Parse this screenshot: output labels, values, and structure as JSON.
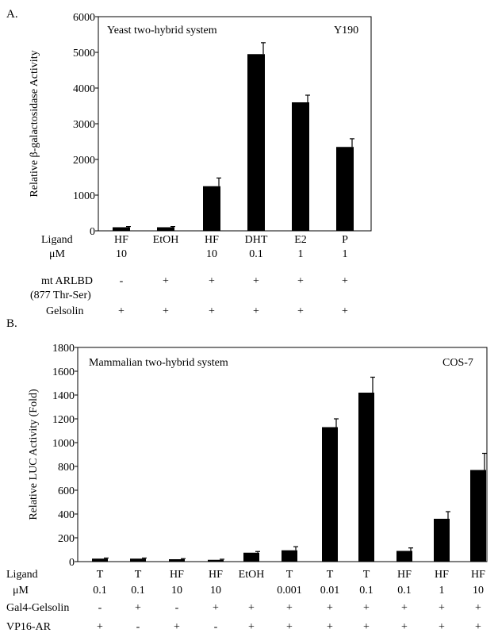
{
  "chart_data": [
    {
      "panel_label": "A.",
      "type": "bar",
      "title": "Yeast two-hybrid system",
      "annotation": "Y190",
      "ylabel": "Relative β-galactosidase Activity",
      "ylim": [
        0,
        6000
      ],
      "yticks": [
        "0",
        "1000",
        "2000",
        "3000",
        "4000",
        "5000",
        "6000"
      ],
      "values": [
        100,
        100,
        1250,
        4950,
        3600,
        2350
      ],
      "errors": [
        20,
        20,
        230,
        320,
        200,
        230
      ],
      "table": [
        {
          "label": "Ligand",
          "cells": [
            "HF",
            "EtOH",
            "HF",
            "DHT",
            "E2",
            "P"
          ]
        },
        {
          "label": "μM",
          "cells": [
            "10",
            "",
            "10",
            "0.1",
            "1",
            "1"
          ]
        },
        {
          "label": "mt ARLBD",
          "cells": [
            "-",
            "+",
            "+",
            "+",
            "+",
            "+"
          ]
        },
        {
          "label": "(877 Thr-Ser)",
          "cells": []
        },
        {
          "label": "Gelsolin",
          "cells": [
            "+",
            "+",
            "+",
            "+",
            "+",
            "+"
          ]
        }
      ]
    },
    {
      "panel_label": "B.",
      "type": "bar",
      "title": "Mammalian two-hybrid system",
      "annotation": "COS-7",
      "ylabel": "Relative LUC Activity (Fold)",
      "ylim": [
        0,
        1800
      ],
      "yticks": [
        "0",
        "200",
        "400",
        "600",
        "800",
        "1000",
        "1200",
        "1400",
        "1600",
        "1800"
      ],
      "values": [
        25,
        25,
        20,
        15,
        75,
        95,
        1130,
        1420,
        90,
        360,
        770
      ],
      "errors": [
        5,
        5,
        5,
        5,
        10,
        30,
        70,
        130,
        25,
        60,
        140
      ],
      "table": [
        {
          "label": "Ligand",
          "cells": [
            "T",
            "T",
            "HF",
            "HF",
            "EtOH",
            "T",
            "T",
            "T",
            "HF",
            "HF",
            "HF"
          ]
        },
        {
          "label": "μM",
          "cells": [
            "0.1",
            "0.1",
            "10",
            "10",
            "",
            "0.001",
            "0.01",
            "0.1",
            "0.1",
            "1",
            "10"
          ]
        },
        {
          "label": "Gal4-Gelsolin",
          "cells": [
            "-",
            "+",
            "-",
            "+",
            "+",
            "+",
            "+",
            "+",
            "+",
            "+",
            "+"
          ]
        },
        {
          "label": "VP16-AR",
          "cells": [
            "+",
            "-",
            "+",
            "-",
            "+",
            "+",
            "+",
            "+",
            "+",
            "+",
            "+"
          ]
        }
      ]
    }
  ]
}
